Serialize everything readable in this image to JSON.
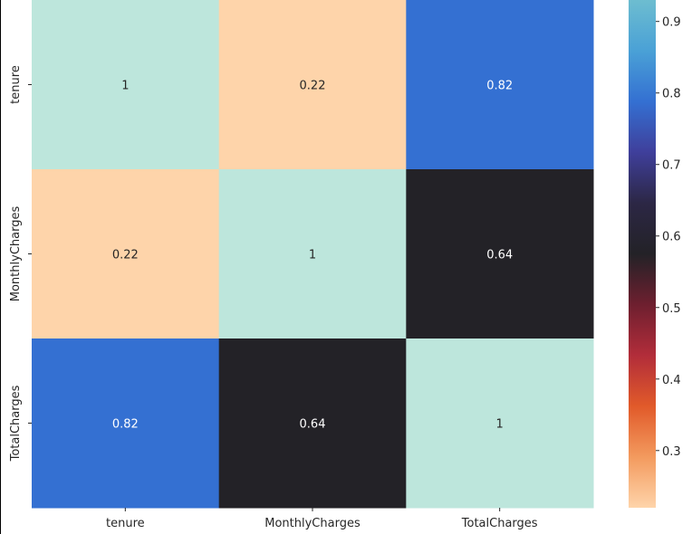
{
  "chart_data": {
    "type": "heatmap",
    "title": "",
    "row_labels": [
      "tenure",
      "MonthlyCharges",
      "TotalCharges"
    ],
    "col_labels": [
      "tenure",
      "MonthlyCharges",
      "TotalCharges"
    ],
    "values": [
      [
        1,
        0.22,
        0.82
      ],
      [
        0.22,
        1,
        0.64
      ],
      [
        0.82,
        0.64,
        1
      ]
    ],
    "annotations": [
      [
        "1",
        "0.22",
        "0.82"
      ],
      [
        "0.22",
        "1",
        "0.64"
      ],
      [
        "0.82",
        "0.64",
        "1"
      ]
    ],
    "cell_colors": [
      [
        "#bde6dc",
        "#fed4aa",
        "#3470d2"
      ],
      [
        "#fed4aa",
        "#bde6dc",
        "#232227"
      ],
      [
        "#3470d2",
        "#232227",
        "#bde6dc"
      ]
    ],
    "colormap": "icefire",
    "colorbar": {
      "vmin": 0.22,
      "vmax": 0.93,
      "ticks": [
        0.3,
        0.4,
        0.5,
        0.6,
        0.7,
        0.8,
        0.9
      ],
      "tick_labels": [
        "0.3",
        "0.4",
        "0.5",
        "0.6",
        "0.7",
        "0.8",
        "0.9"
      ],
      "stops": [
        "#fed4aa",
        "#f39a5e",
        "#e15a2a",
        "#b22d3a",
        "#6e1f2f",
        "#232227",
        "#2c2745",
        "#3f3f9b",
        "#3470d2",
        "#4aa1d6",
        "#6dbdd0"
      ]
    }
  }
}
